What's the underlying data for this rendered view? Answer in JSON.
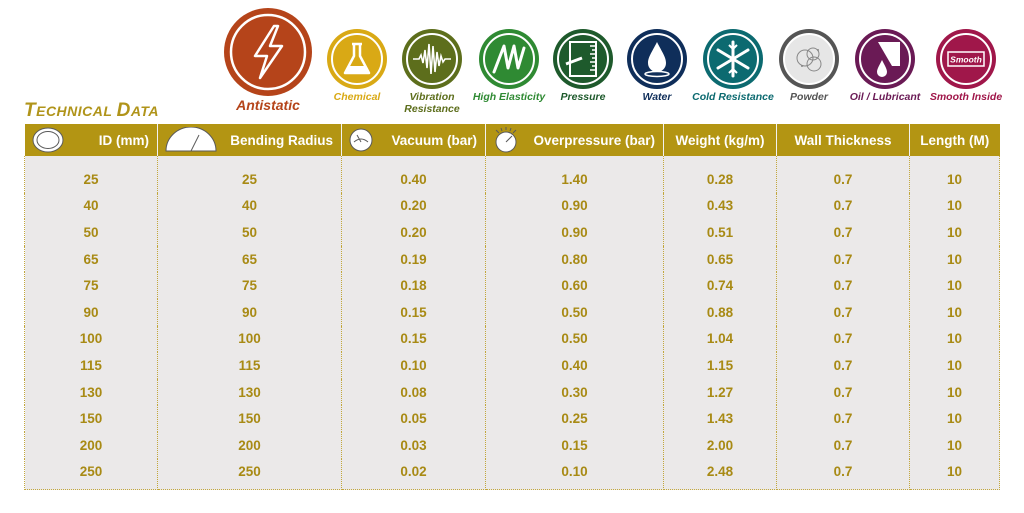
{
  "title": {
    "first_cap": "T",
    "first_rest": "ECHNICAL",
    "second_cap": "D",
    "second_rest": "ATA"
  },
  "features": [
    {
      "label": "Antistatic",
      "icon": "lightning-bolt-icon",
      "color": "#b5441a"
    },
    {
      "label": "Chemical",
      "icon": "flask-icon",
      "color": "#d9a915"
    },
    {
      "label": "Vibration\nResistance",
      "icon": "waveform-icon",
      "color": "#5d6e1c"
    },
    {
      "label": "High Elasticity",
      "icon": "spring-icon",
      "color": "#2f8a33"
    },
    {
      "label": "Pressure",
      "icon": "gauge-icon",
      "color": "#1e5a2c"
    },
    {
      "label": "Water",
      "icon": "water-drop-icon",
      "color": "#0f2e5a"
    },
    {
      "label": "Cold Resistance",
      "icon": "snowflake-icon",
      "color": "#0c6a70"
    },
    {
      "label": "Powder",
      "icon": "powder-cloud-icon",
      "color": "#555555"
    },
    {
      "label": "Oil / Lubricant",
      "icon": "oil-drop-icon",
      "color": "#6a1a55"
    },
    {
      "label": "Smooth Inside",
      "icon": "smooth-tube-icon",
      "color": "#a0174a"
    }
  ],
  "smooth_text": "Smooth",
  "table": {
    "headers": [
      "ID (mm)",
      "Bending Radius",
      "Vacuum (bar)",
      "Overpressure (bar)",
      "Weight (kg/m)",
      "Wall Thickness",
      "Length (M)"
    ],
    "rows": [
      [
        "25",
        "25",
        "0.40",
        "1.40",
        "0.28",
        "0.7",
        "10"
      ],
      [
        "40",
        "40",
        "0.20",
        "0.90",
        "0.43",
        "0.7",
        "10"
      ],
      [
        "50",
        "50",
        "0.20",
        "0.90",
        "0.51",
        "0.7",
        "10"
      ],
      [
        "65",
        "65",
        "0.19",
        "0.80",
        "0.65",
        "0.7",
        "10"
      ],
      [
        "75",
        "75",
        "0.18",
        "0.60",
        "0.74",
        "0.7",
        "10"
      ],
      [
        "90",
        "90",
        "0.15",
        "0.50",
        "0.88",
        "0.7",
        "10"
      ],
      [
        "100",
        "100",
        "0.15",
        "0.50",
        "1.04",
        "0.7",
        "10"
      ],
      [
        "115",
        "115",
        "0.10",
        "0.40",
        "1.15",
        "0.7",
        "10"
      ],
      [
        "130",
        "130",
        "0.08",
        "0.30",
        "1.27",
        "0.7",
        "10"
      ],
      [
        "150",
        "150",
        "0.05",
        "0.25",
        "1.43",
        "0.7",
        "10"
      ],
      [
        "200",
        "200",
        "0.03",
        "0.15",
        "2.00",
        "0.7",
        "10"
      ],
      [
        "250",
        "250",
        "0.02",
        "0.10",
        "2.48",
        "0.7",
        "10"
      ]
    ]
  }
}
